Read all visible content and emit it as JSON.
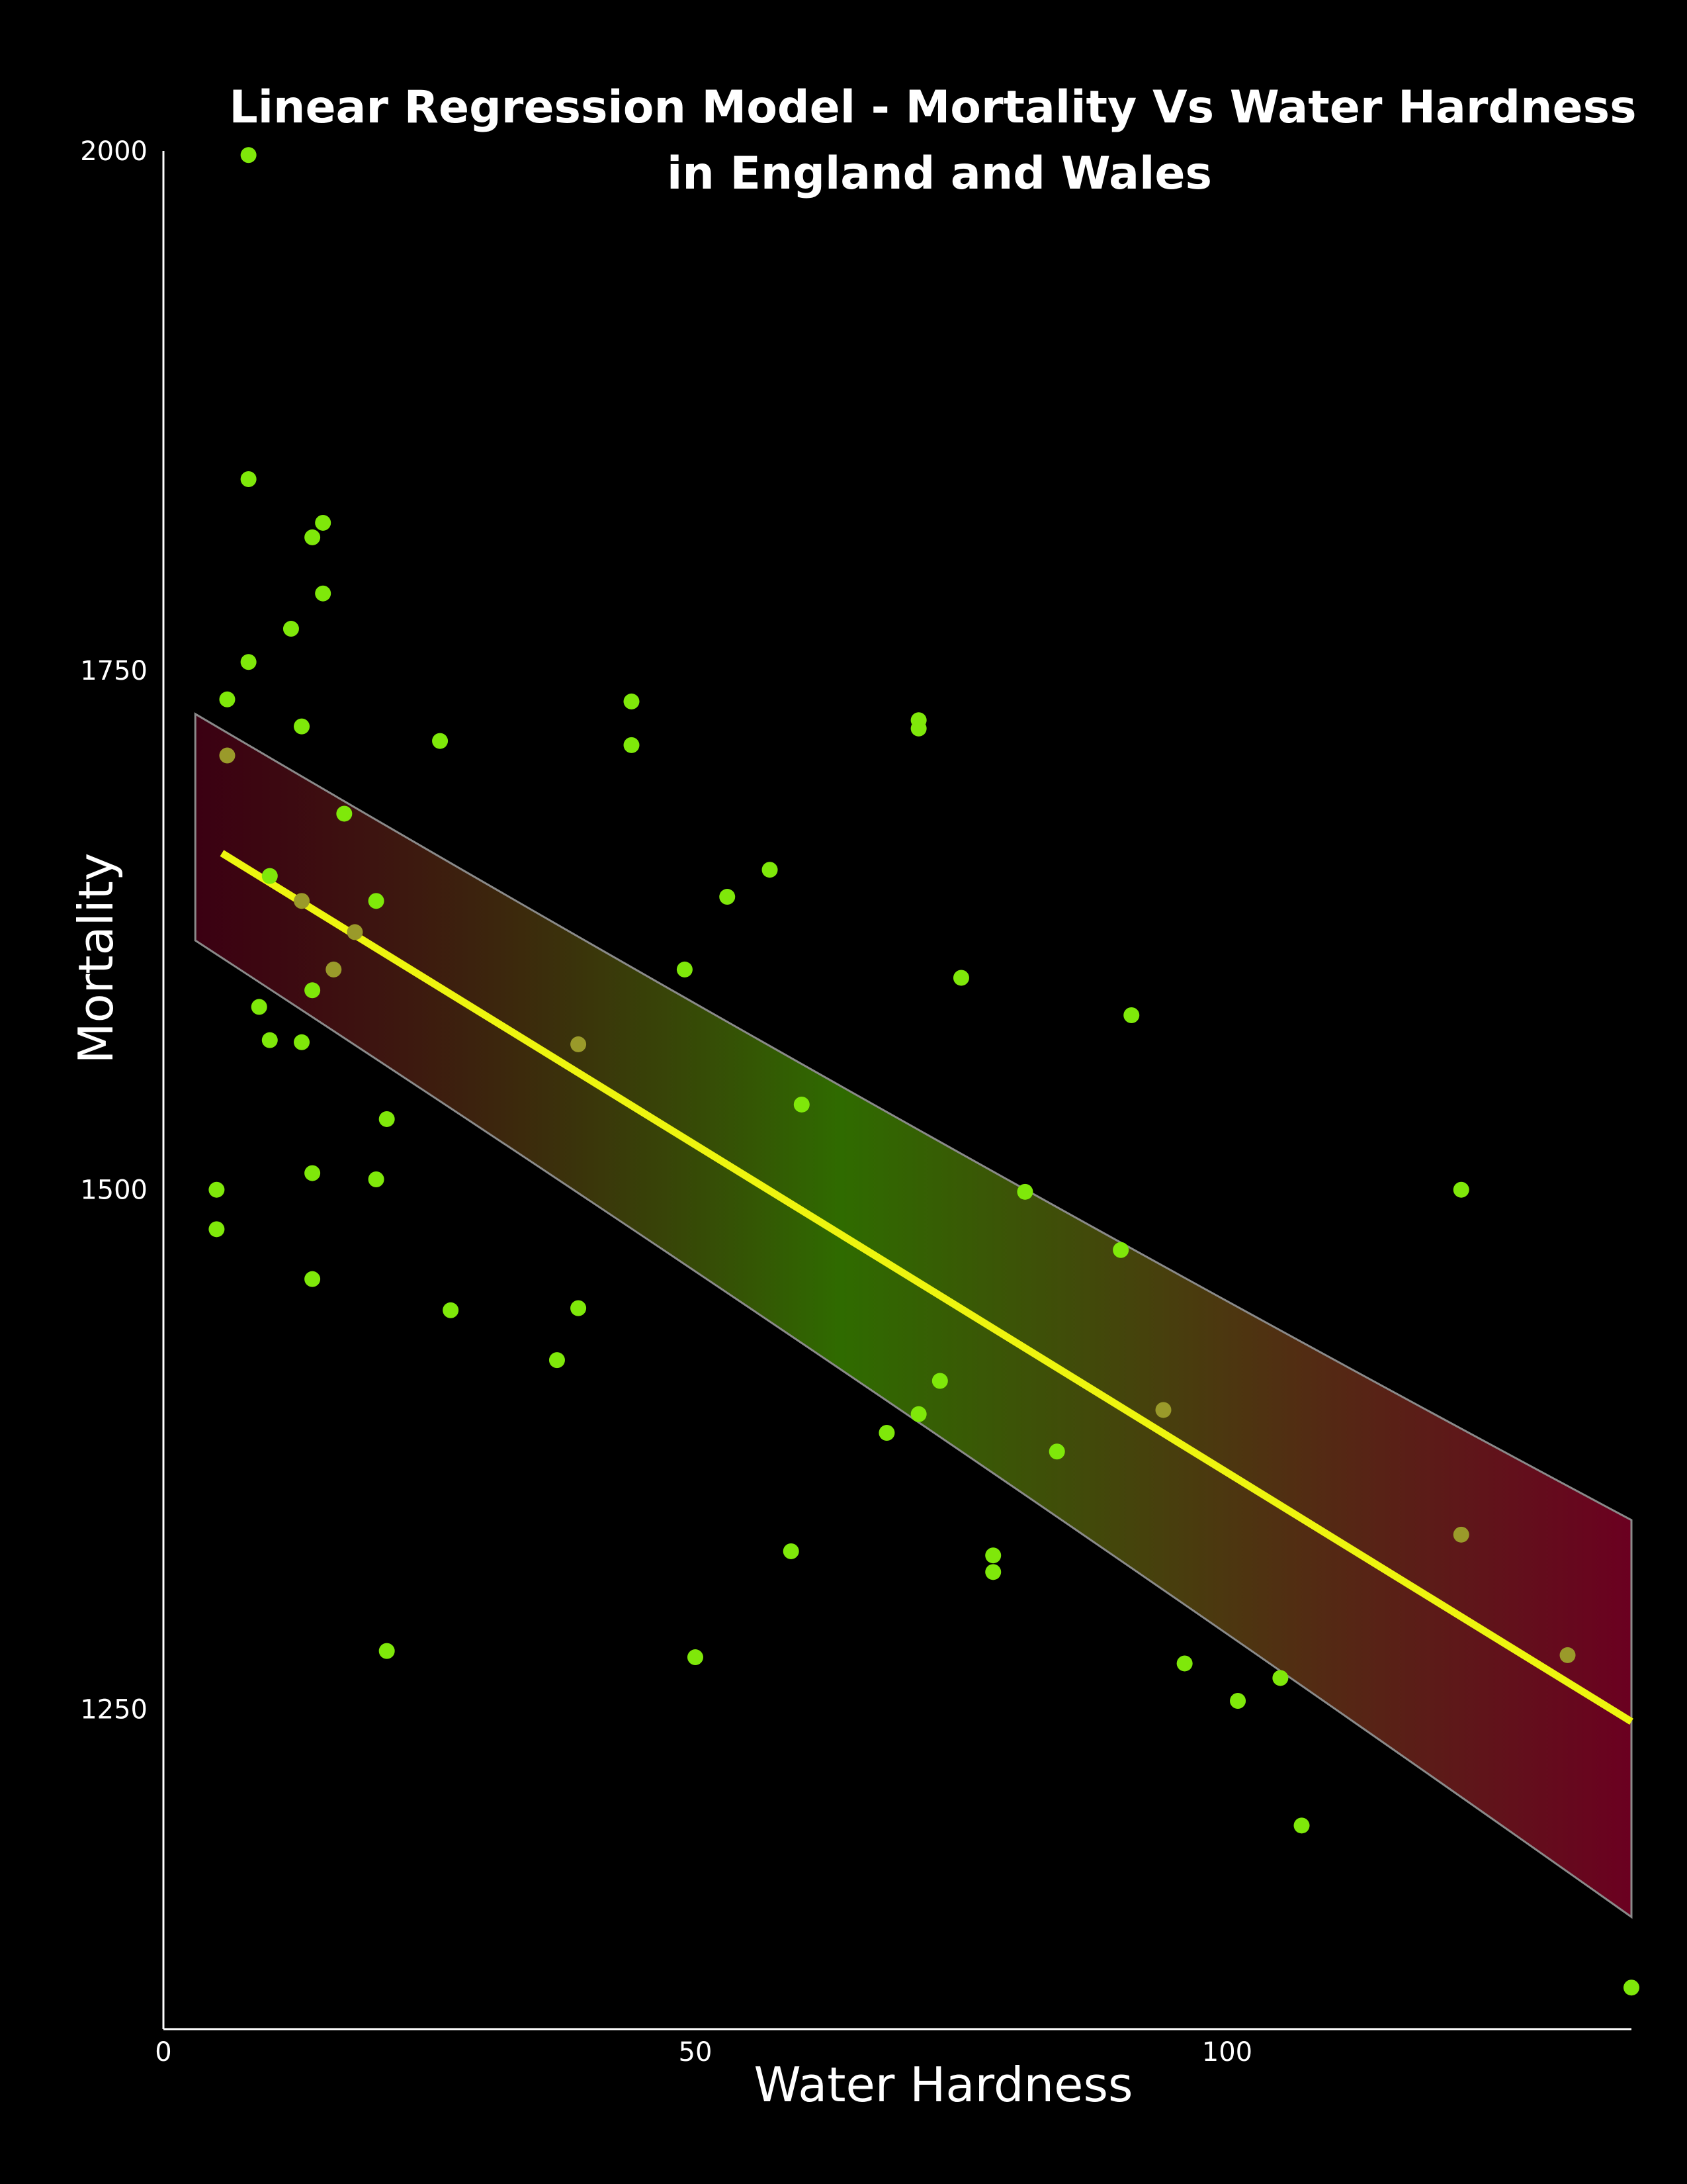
{
  "chart_data": {
    "type": "scatter",
    "title_lines": [
      "Linear Regression Model - Mortality Vs Water Hardness",
      "in England and Wales"
    ],
    "xlabel": "Water Hardness",
    "ylabel": "Mortality",
    "xlim": [
      0,
      138
    ],
    "ylim": [
      1096,
      2000
    ],
    "x_ticks": [
      0,
      50,
      100
    ],
    "y_ticks": [
      1250,
      1500,
      1750,
      2000
    ],
    "grid": false,
    "legend": "none",
    "colors": {
      "background": "#000000",
      "points": "#7fe80a",
      "points_muted": "#9a9a2a",
      "fit_line": "#eef50f",
      "band_edge": "#8a8a8a",
      "band_center": "#2f6b00",
      "band_outer": "#6b0020",
      "axis": "#ffffff"
    },
    "regression": {
      "x": [
        5.5,
        138
      ],
      "y": [
        1662,
        1244
      ]
    },
    "confidence_band": {
      "x": [
        3,
        138
      ],
      "upper": [
        1729,
        1341
      ],
      "lower": [
        1620,
        1150
      ]
    },
    "points": [
      {
        "x": 8,
        "y": 1998
      },
      {
        "x": 8,
        "y": 1842
      },
      {
        "x": 15,
        "y": 1821
      },
      {
        "x": 14,
        "y": 1814
      },
      {
        "x": 15,
        "y": 1787
      },
      {
        "x": 12,
        "y": 1770
      },
      {
        "x": 8,
        "y": 1754
      },
      {
        "x": 6,
        "y": 1736
      },
      {
        "x": 13,
        "y": 1723
      },
      {
        "x": 6,
        "y": 1709,
        "muted": true
      },
      {
        "x": 26,
        "y": 1716
      },
      {
        "x": 44,
        "y": 1735
      },
      {
        "x": 44,
        "y": 1714
      },
      {
        "x": 71,
        "y": 1726
      },
      {
        "x": 71,
        "y": 1722
      },
      {
        "x": 17,
        "y": 1681
      },
      {
        "x": 10,
        "y": 1651
      },
      {
        "x": 13,
        "y": 1639,
        "muted": true
      },
      {
        "x": 20,
        "y": 1639
      },
      {
        "x": 53,
        "y": 1641
      },
      {
        "x": 57,
        "y": 1654
      },
      {
        "x": 18,
        "y": 1624,
        "muted": true
      },
      {
        "x": 16,
        "y": 1606,
        "muted": true
      },
      {
        "x": 49,
        "y": 1606
      },
      {
        "x": 75,
        "y": 1602
      },
      {
        "x": 14,
        "y": 1596
      },
      {
        "x": 9,
        "y": 1588
      },
      {
        "x": 91,
        "y": 1584
      },
      {
        "x": 10,
        "y": 1572
      },
      {
        "x": 13,
        "y": 1571
      },
      {
        "x": 39,
        "y": 1570,
        "muted": true
      },
      {
        "x": 60,
        "y": 1541
      },
      {
        "x": 21,
        "y": 1534
      },
      {
        "x": 14,
        "y": 1508
      },
      {
        "x": 20,
        "y": 1505
      },
      {
        "x": 5,
        "y": 1500
      },
      {
        "x": 81,
        "y": 1499
      },
      {
        "x": 122,
        "y": 1500
      },
      {
        "x": 5,
        "y": 1481
      },
      {
        "x": 90,
        "y": 1471
      },
      {
        "x": 14,
        "y": 1457
      },
      {
        "x": 27,
        "y": 1442
      },
      {
        "x": 39,
        "y": 1443
      },
      {
        "x": 37,
        "y": 1418
      },
      {
        "x": 73,
        "y": 1408
      },
      {
        "x": 71,
        "y": 1392
      },
      {
        "x": 94,
        "y": 1394,
        "muted": true
      },
      {
        "x": 68,
        "y": 1383
      },
      {
        "x": 84,
        "y": 1374
      },
      {
        "x": 122,
        "y": 1334,
        "muted": true
      },
      {
        "x": 59,
        "y": 1326
      },
      {
        "x": 78,
        "y": 1324
      },
      {
        "x": 78,
        "y": 1316
      },
      {
        "x": 21,
        "y": 1278
      },
      {
        "x": 50,
        "y": 1275
      },
      {
        "x": 132,
        "y": 1276,
        "muted": true
      },
      {
        "x": 96,
        "y": 1272
      },
      {
        "x": 105,
        "y": 1265
      },
      {
        "x": 101,
        "y": 1254
      },
      {
        "x": 107,
        "y": 1194
      },
      {
        "x": 138,
        "y": 1116
      }
    ]
  }
}
